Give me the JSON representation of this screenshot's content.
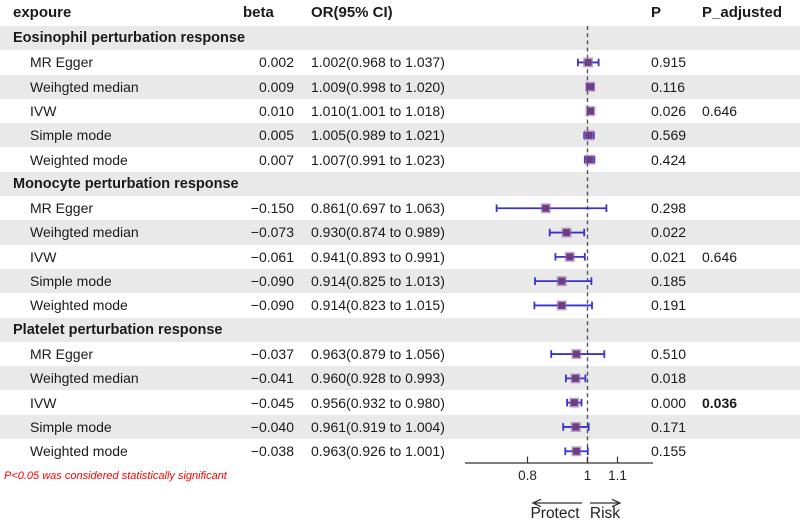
{
  "header": {
    "exposure": "expoure",
    "beta": "beta",
    "or_ci": "OR(95% CI)",
    "p": "P",
    "p_adjusted": "P_adjusted"
  },
  "footnote": {
    "text": "P<0.05 was considered statistically significant"
  },
  "direction_labels": {
    "left": "Protect",
    "right": "Risk"
  },
  "colors": {
    "error_bar": "#3633d0",
    "marker": "#6f3d82",
    "marker_halo": "#8f60a8",
    "reference_line": "#555555",
    "axis": "#333333",
    "stripe": "#e9e9e9",
    "footnote": "#ff0000",
    "text": "#1a1a1a"
  },
  "chart_data": {
    "type": "forest",
    "x_axis": {
      "scale": "linear",
      "tick_values": [
        0.8,
        1,
        1.1
      ],
      "tick_labels": [
        "0.8",
        "1",
        "1.1"
      ],
      "reference_line": 1
    },
    "groups": [
      {
        "label": "Eosinophil perturbation response",
        "rows": [
          {
            "method": "MR Egger",
            "beta": "0.002",
            "or_text": "1.002(0.968 to 1.037)",
            "or": 1.002,
            "lo": 0.968,
            "hi": 1.037,
            "p": "0.915",
            "p_adjusted": ""
          },
          {
            "method": "Weihgted median",
            "beta": "0.009",
            "or_text": "1.009(0.998 to 1.020)",
            "or": 1.009,
            "lo": 0.998,
            "hi": 1.02,
            "p": "0.116",
            "p_adjusted": ""
          },
          {
            "method": "IVW",
            "beta": "0.010",
            "or_text": "1.010(1.001 to 1.018)",
            "or": 1.01,
            "lo": 1.001,
            "hi": 1.018,
            "p": "0.026",
            "p_adjusted": "0.646"
          },
          {
            "method": "Simple mode",
            "beta": "0.005",
            "or_text": "1.005(0.989 to 1.021)",
            "or": 1.005,
            "lo": 0.989,
            "hi": 1.021,
            "p": "0.569",
            "p_adjusted": ""
          },
          {
            "method": "Weighted mode",
            "beta": "0.007",
            "or_text": "1.007(0.991 to 1.023)",
            "or": 1.007,
            "lo": 0.991,
            "hi": 1.023,
            "p": "0.424",
            "p_adjusted": ""
          }
        ]
      },
      {
        "label": "Monocyte perturbation response",
        "rows": [
          {
            "method": "MR Egger",
            "beta": "−0.150",
            "or_text": "0.861(0.697 to 1.063)",
            "or": 0.861,
            "lo": 0.697,
            "hi": 1.063,
            "p": "0.298",
            "p_adjusted": ""
          },
          {
            "method": "Weihgted median",
            "beta": "−0.073",
            "or_text": "0.930(0.874 to 0.989)",
            "or": 0.93,
            "lo": 0.874,
            "hi": 0.989,
            "p": "0.022",
            "p_adjusted": ""
          },
          {
            "method": "IVW",
            "beta": "−0.061",
            "or_text": "0.941(0.893 to 0.991)",
            "or": 0.941,
            "lo": 0.893,
            "hi": 0.991,
            "p": "0.021",
            "p_adjusted": "0.646"
          },
          {
            "method": "Simple mode",
            "beta": "−0.090",
            "or_text": "0.914(0.825 to 1.013)",
            "or": 0.914,
            "lo": 0.825,
            "hi": 1.013,
            "p": "0.185",
            "p_adjusted": ""
          },
          {
            "method": "Weighted mode",
            "beta": "−0.090",
            "or_text": "0.914(0.823 to 1.015)",
            "or": 0.914,
            "lo": 0.823,
            "hi": 1.015,
            "p": "0.191",
            "p_adjusted": ""
          }
        ]
      },
      {
        "label": "Platelet perturbation response",
        "rows": [
          {
            "method": "MR Egger",
            "beta": "−0.037",
            "or_text": "0.963(0.879 to 1.056)",
            "or": 0.963,
            "lo": 0.879,
            "hi": 1.056,
            "p": "0.510",
            "p_adjusted": ""
          },
          {
            "method": "Weihgted median",
            "beta": "−0.041",
            "or_text": "0.960(0.928 to 0.993)",
            "or": 0.96,
            "lo": 0.928,
            "hi": 0.993,
            "p": "0.018",
            "p_adjusted": ""
          },
          {
            "method": "IVW",
            "beta": "−0.045",
            "or_text": "0.956(0.932 to 0.980)",
            "or": 0.956,
            "lo": 0.932,
            "hi": 0.98,
            "p": "0.000",
            "p_adjusted": "0.036",
            "p_adjusted_strong": true
          },
          {
            "method": "Simple mode",
            "beta": "−0.040",
            "or_text": "0.961(0.919 to 1.004)",
            "or": 0.961,
            "lo": 0.919,
            "hi": 1.004,
            "p": "0.171",
            "p_adjusted": ""
          },
          {
            "method": "Weighted mode",
            "beta": "−0.038",
            "or_text": "0.963(0.926 to 1.001)",
            "or": 0.963,
            "lo": 0.926,
            "hi": 1.001,
            "p": "0.155",
            "p_adjusted": ""
          }
        ]
      }
    ]
  }
}
